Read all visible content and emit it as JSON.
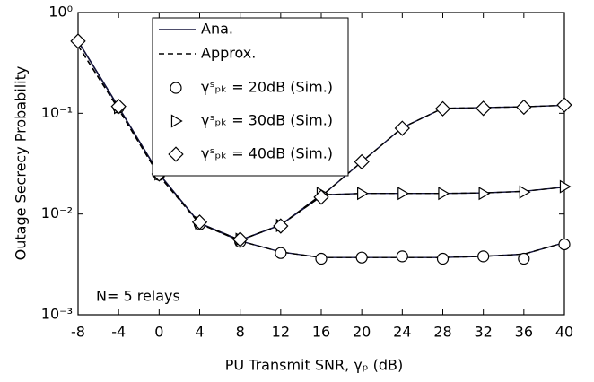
{
  "chart_data": {
    "type": "line",
    "xlabel": "PU Transmit SNR, γₚ (dB)",
    "ylabel": "Outage Secrecy Probability",
    "annotation": "N= 5 relays",
    "log_y": true,
    "xlim": [
      -8,
      40
    ],
    "ylim": [
      0.001,
      1
    ],
    "xticks": [
      -8,
      -4,
      0,
      4,
      8,
      12,
      16,
      20,
      24,
      28,
      32,
      36,
      40
    ],
    "yticks": [
      {
        "value": 0.001,
        "label": "10⁻³"
      },
      {
        "value": 0.01,
        "label": "10⁻²"
      },
      {
        "value": 0.1,
        "label": "10⁻¹"
      },
      {
        "value": 1,
        "label": "10⁰"
      }
    ],
    "x": [
      -8,
      -4,
      0,
      4,
      8,
      12,
      16,
      20,
      24,
      28,
      32,
      36,
      40
    ],
    "series": [
      {
        "name": "Ana.",
        "color": "#14143c",
        "dash": false,
        "curves": [
          [
            0.52,
            0.115,
            0.025,
            0.0081,
            0.0054,
            0.0042,
            0.0037,
            0.0037,
            0.0037,
            0.0037,
            0.0038,
            0.004,
            0.0052
          ],
          [
            0.52,
            0.115,
            0.025,
            0.0081,
            0.0055,
            0.0078,
            0.0155,
            0.016,
            0.016,
            0.016,
            0.0162,
            0.0168,
            0.0185
          ],
          [
            0.52,
            0.115,
            0.025,
            0.0081,
            0.0055,
            0.0078,
            0.015,
            0.033,
            0.072,
            0.112,
            0.114,
            0.116,
            0.12
          ]
        ]
      },
      {
        "name": "Approx.",
        "color": "#000000",
        "dash": true,
        "curves": [
          [
            0.47,
            0.11,
            0.024,
            0.008,
            0.0054,
            0.0042,
            0.0037,
            0.0037,
            0.0037,
            0.0037,
            0.0038,
            0.004,
            0.0052
          ],
          [
            0.47,
            0.11,
            0.024,
            0.008,
            0.0055,
            0.0078,
            0.0155,
            0.016,
            0.016,
            0.016,
            0.0162,
            0.0168,
            0.0185
          ],
          [
            0.47,
            0.11,
            0.024,
            0.008,
            0.0055,
            0.0078,
            0.015,
            0.033,
            0.072,
            0.112,
            0.114,
            0.116,
            0.12
          ]
        ]
      },
      {
        "name": "γˢₚₖ = 20dB (Sim.)",
        "marker": "circle",
        "color": "#000000",
        "x": [
          -4,
          0,
          4,
          8,
          12,
          16,
          20,
          24,
          28,
          32,
          36,
          40
        ],
        "values": [
          0.114,
          0.0245,
          0.0079,
          0.0053,
          0.0041,
          0.0036,
          0.0037,
          0.0038,
          0.0036,
          0.0038,
          0.0036,
          0.005
        ]
      },
      {
        "name": "γˢₚₖ = 30dB (Sim.)",
        "marker": "triangle",
        "color": "#000000",
        "x": [
          -4,
          0,
          4,
          8,
          12,
          16,
          20,
          24,
          28,
          32,
          36,
          40
        ],
        "values": [
          0.114,
          0.025,
          0.0082,
          0.0056,
          0.0077,
          0.016,
          0.016,
          0.016,
          0.016,
          0.016,
          0.0165,
          0.0187
        ]
      },
      {
        "name": "γˢₚₖ = 40dB (Sim.)",
        "marker": "diamond",
        "color": "#000000",
        "x": [
          -8,
          -4,
          0,
          4,
          8,
          12,
          16,
          20,
          24,
          28,
          32,
          36,
          40
        ],
        "values": [
          0.52,
          0.117,
          0.025,
          0.0083,
          0.0056,
          0.0076,
          0.0147,
          0.033,
          0.071,
          0.111,
          0.112,
          0.115,
          0.121
        ]
      }
    ]
  }
}
